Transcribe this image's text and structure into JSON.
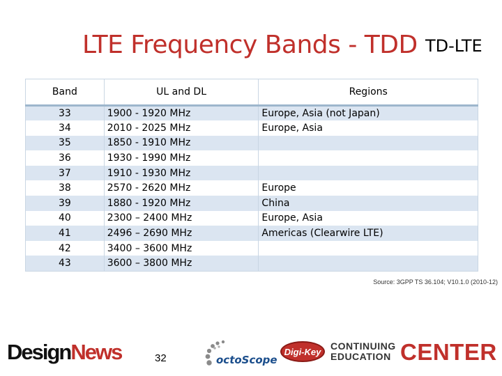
{
  "slide": {
    "title": "LTE Frequency Bands - TDD",
    "subtitle": "TD-LTE",
    "source": "Source:  3GPP TS 36.104; V10.1.0 (2010-12)",
    "page_number": "32"
  },
  "table": {
    "headers": [
      "Band",
      "UL and DL",
      "Regions"
    ],
    "rows": [
      {
        "band": "33",
        "ul_dl": "1900 - 1920 MHz",
        "regions": "Europe, Asia (not Japan)"
      },
      {
        "band": "34",
        "ul_dl": "2010 - 2025 MHz",
        "regions": "Europe, Asia"
      },
      {
        "band": "35",
        "ul_dl": "1850 - 1910 MHz",
        "regions": ""
      },
      {
        "band": "36",
        "ul_dl": "1930 - 1990 MHz",
        "regions": ""
      },
      {
        "band": "37",
        "ul_dl": "1910 - 1930 MHz",
        "regions": ""
      },
      {
        "band": "38",
        "ul_dl": "2570 - 2620 MHz",
        "regions": "Europe"
      },
      {
        "band": "39",
        "ul_dl": "1880 - 1920 MHz",
        "regions": "China"
      },
      {
        "band": "40",
        "ul_dl": "2300 – 2400 MHz",
        "regions": "Europe, Asia"
      },
      {
        "band": "41",
        "ul_dl": "2496 – 2690 MHz",
        "regions": "Americas (Clearwire LTE)"
      },
      {
        "band": "42",
        "ul_dl": "3400 – 3600 MHz",
        "regions": ""
      },
      {
        "band": "43",
        "ul_dl": "3600 – 3800 MHz",
        "regions": ""
      }
    ]
  },
  "footer_logos": {
    "designnews": {
      "design": "Design",
      "news": "News"
    },
    "octoscope": "octoScope",
    "digikey": "Digi-Key",
    "cec": {
      "line1": "CONTINUING",
      "line2": "EDUCATION",
      "center": "CENTER"
    }
  },
  "colors": {
    "title": "#c0302b",
    "row_stripe": "#dbe5f1",
    "border": "#c9d6e3"
  }
}
